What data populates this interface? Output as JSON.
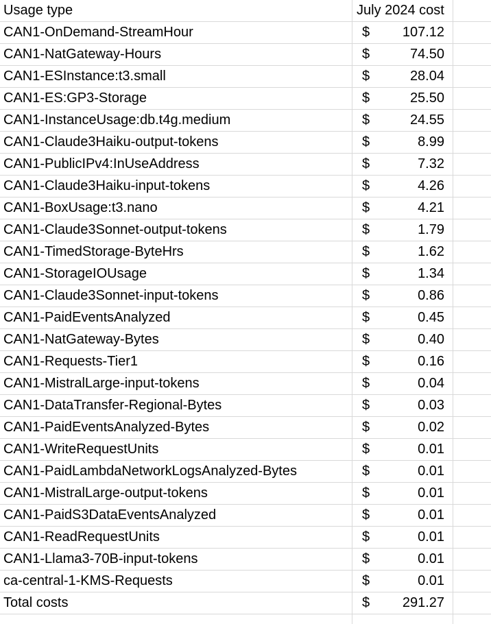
{
  "table": {
    "headers": {
      "usage_type": "Usage type",
      "cost": "July 2024 cost"
    },
    "currency_symbol": "$",
    "rows": [
      {
        "label": "CAN1-OnDemand-StreamHour",
        "amount": "107.12"
      },
      {
        "label": "CAN1-NatGateway-Hours",
        "amount": "74.50"
      },
      {
        "label": "CAN1-ESInstance:t3.small",
        "amount": "28.04"
      },
      {
        "label": "CAN1-ES:GP3-Storage",
        "amount": "25.50"
      },
      {
        "label": "CAN1-InstanceUsage:db.t4g.medium",
        "amount": "24.55"
      },
      {
        "label": "CAN1-Claude3Haiku-output-tokens",
        "amount": "8.99"
      },
      {
        "label": "CAN1-PublicIPv4:InUseAddress",
        "amount": "7.32"
      },
      {
        "label": "CAN1-Claude3Haiku-input-tokens",
        "amount": "4.26"
      },
      {
        "label": "CAN1-BoxUsage:t3.nano",
        "amount": "4.21"
      },
      {
        "label": "CAN1-Claude3Sonnet-output-tokens",
        "amount": "1.79"
      },
      {
        "label": "CAN1-TimedStorage-ByteHrs",
        "amount": "1.62"
      },
      {
        "label": "CAN1-StorageIOUsage",
        "amount": "1.34"
      },
      {
        "label": "CAN1-Claude3Sonnet-input-tokens",
        "amount": "0.86"
      },
      {
        "label": "CAN1-PaidEventsAnalyzed",
        "amount": "0.45"
      },
      {
        "label": "CAN1-NatGateway-Bytes",
        "amount": "0.40"
      },
      {
        "label": "CAN1-Requests-Tier1",
        "amount": "0.16"
      },
      {
        "label": "CAN1-MistralLarge-input-tokens",
        "amount": "0.04"
      },
      {
        "label": "CAN1-DataTransfer-Regional-Bytes",
        "amount": "0.03"
      },
      {
        "label": "CAN1-PaidEventsAnalyzed-Bytes",
        "amount": "0.02"
      },
      {
        "label": "CAN1-WriteRequestUnits",
        "amount": "0.01"
      },
      {
        "label": "CAN1-PaidLambdaNetworkLogsAnalyzed-Bytes",
        "amount": "0.01"
      },
      {
        "label": "CAN1-MistralLarge-output-tokens",
        "amount": "0.01"
      },
      {
        "label": "CAN1-PaidS3DataEventsAnalyzed",
        "amount": "0.01"
      },
      {
        "label": "CAN1-ReadRequestUnits",
        "amount": "0.01"
      },
      {
        "label": "CAN1-Llama3-70B-input-tokens",
        "amount": "0.01"
      },
      {
        "label": "ca-central-1-KMS-Requests",
        "amount": "0.01"
      }
    ],
    "total": {
      "label": "Total costs",
      "amount": "291.27"
    }
  }
}
